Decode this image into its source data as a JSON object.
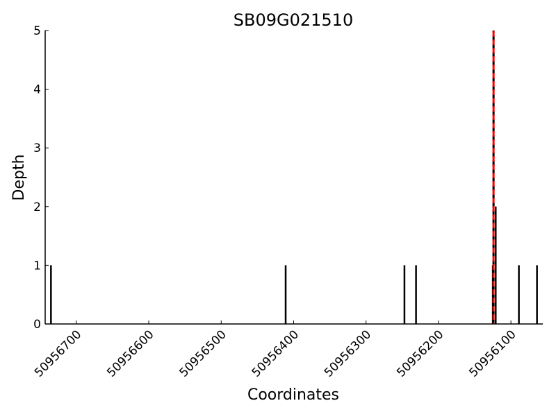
{
  "chart_data": {
    "type": "bar",
    "title": "SB09G021510",
    "xlabel": "Coordinates",
    "ylabel": "Depth",
    "xlim": [
      50956743,
      50956056
    ],
    "x_reversed": true,
    "ylim": [
      0,
      5
    ],
    "grid": false,
    "xticks": [
      50956700,
      50956600,
      50956500,
      50956400,
      50956300,
      50956200,
      50956100
    ],
    "yticks": [
      0,
      1,
      2,
      3,
      4,
      5
    ],
    "bars": [
      {
        "x": 50956735,
        "y": 1
      },
      {
        "x": 50956411,
        "y": 1
      },
      {
        "x": 50956247,
        "y": 1
      },
      {
        "x": 50956231,
        "y": 1
      },
      {
        "x": 50956125,
        "y": 1
      },
      {
        "x": 50956124,
        "y": 3
      },
      {
        "x": 50956121,
        "y": 2
      },
      {
        "x": 50956089,
        "y": 1
      },
      {
        "x": 50956064,
        "y": 1
      }
    ],
    "vline": {
      "x": 50956124,
      "color": "#ff0000",
      "style": "dashed"
    },
    "bar_color": "#000000"
  }
}
